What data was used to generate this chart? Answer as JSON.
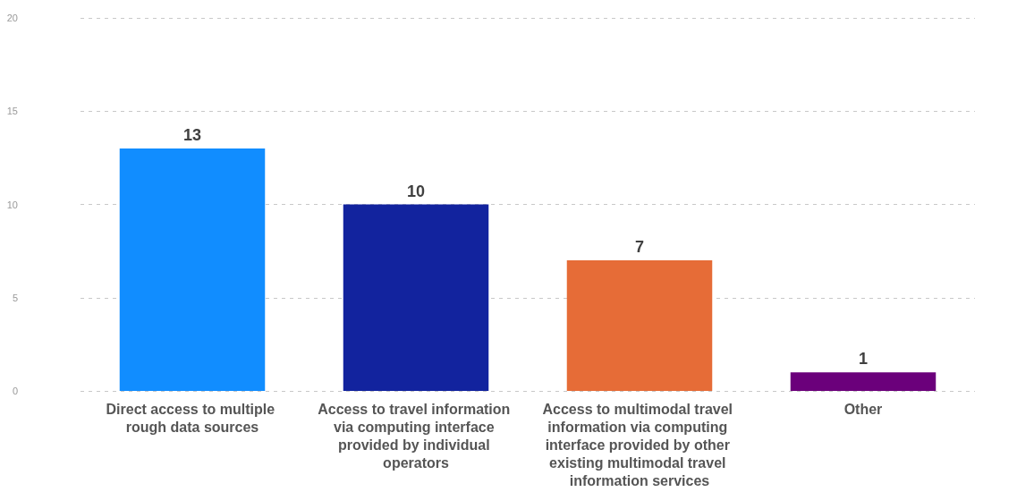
{
  "chart_data": {
    "type": "bar",
    "categories": [
      "Direct access to multiple rough data sources",
      "Access to travel information via computing interface provided by individual operators",
      "Access to multimodal travel information via computing interface provided by other existing multimodal travel information services",
      "Other"
    ],
    "values": [
      13,
      10,
      7,
      1
    ],
    "colors": [
      "#118dff",
      "#12239e",
      "#e66c37",
      "#6b007b"
    ],
    "ylim": [
      0,
      20
    ],
    "yticks": [
      0,
      5,
      10,
      15,
      20
    ],
    "grid": "y",
    "data_labels": true
  }
}
